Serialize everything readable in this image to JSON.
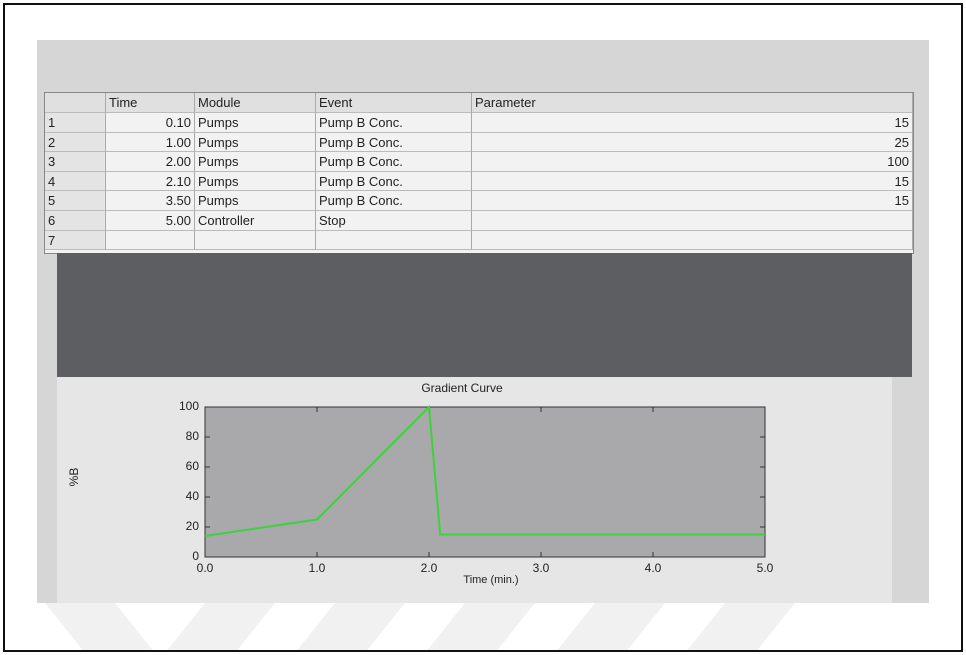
{
  "table": {
    "header": [
      "Time",
      "Module",
      "Event",
      "Parameter"
    ],
    "rows": [
      {
        "index": "1",
        "time": "0.10",
        "module": "Pumps",
        "event": "Pump B Conc.",
        "parameter": 15
      },
      {
        "index": "2",
        "time": "1.00",
        "module": "Pumps",
        "event": "Pump B Conc.",
        "parameter": 25
      },
      {
        "index": "3",
        "time": "2.00",
        "module": "Pumps",
        "event": "Pump B Conc.",
        "parameter": 100
      },
      {
        "index": "4",
        "time": "2.10",
        "module": "Pumps",
        "event": "Pump B Conc.",
        "parameter": 15
      },
      {
        "index": "5",
        "time": "3.50",
        "module": "Pumps",
        "event": "Pump B Conc.",
        "parameter": 15
      },
      {
        "index": "6",
        "time": "5.00",
        "module": "Controller",
        "event": "Stop"
      },
      {
        "index": "7"
      }
    ]
  },
  "chart_data": {
    "type": "line",
    "title": "Gradient Curve",
    "x_label": "Time (min.)",
    "y_label": "%B",
    "x": [
      0,
      1,
      2,
      2.1,
      3.5,
      5
    ],
    "values": [
      14,
      25,
      100,
      15,
      15,
      15
    ],
    "color": "#3cd23c",
    "xlim": [
      0,
      5
    ],
    "ylim": [
      0,
      100
    ],
    "xticks": [
      {
        "value": 0,
        "label": "0.0"
      },
      {
        "value": 1,
        "label": "1.0"
      },
      {
        "value": 2,
        "label": "2.0"
      },
      {
        "value": 3,
        "label": "3.0"
      },
      {
        "value": 4,
        "label": "4.0"
      },
      {
        "value": 5,
        "label": "5.0"
      }
    ],
    "yticks": [
      0,
      20,
      40,
      60,
      80,
      100
    ]
  }
}
